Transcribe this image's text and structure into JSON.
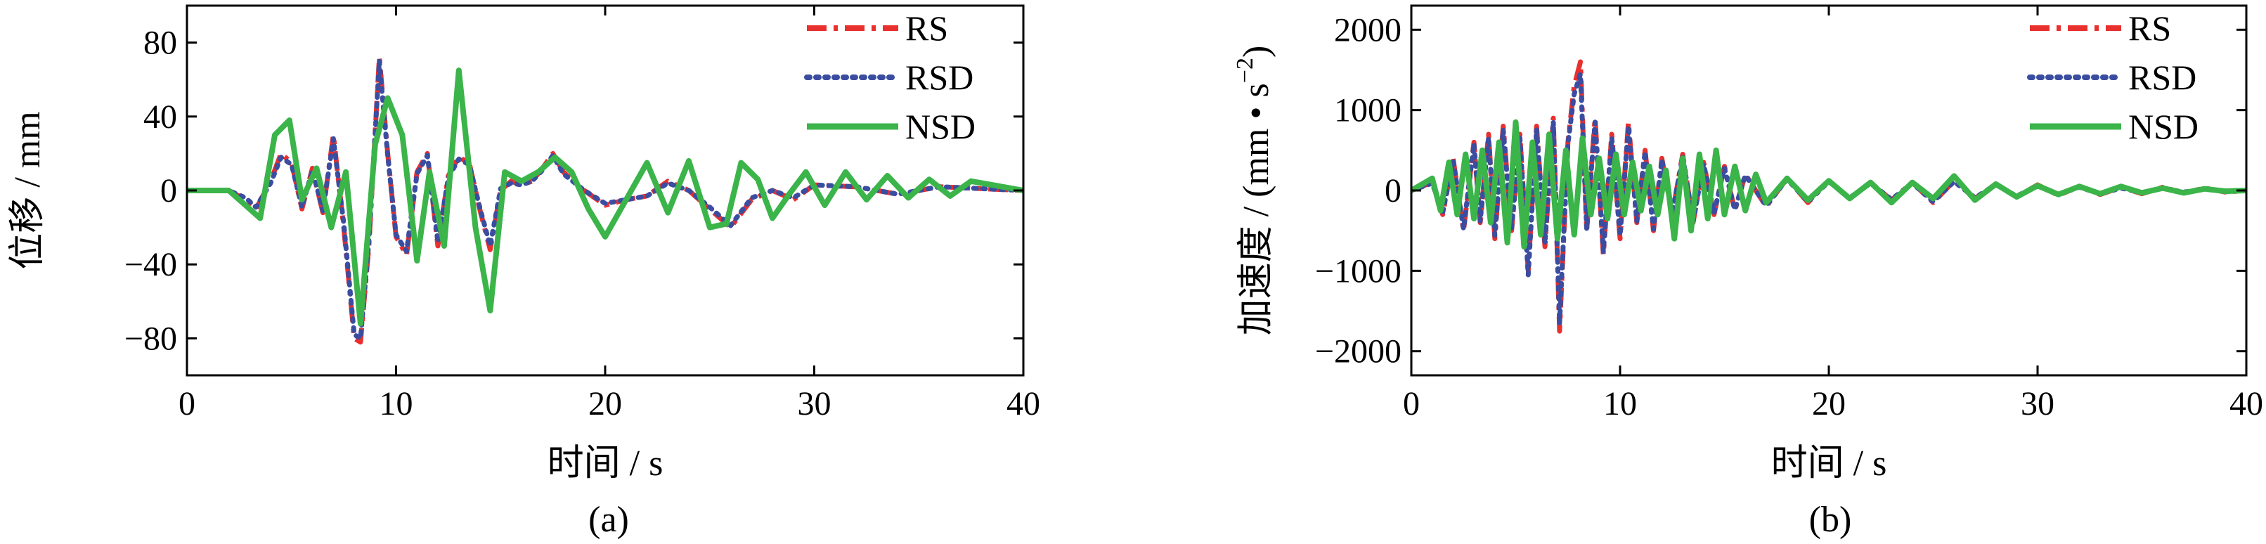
{
  "chart_data": [
    {
      "type": "line",
      "caption": "(a)",
      "xlabel": "时间 / s",
      "ylabel": "位移 / mm",
      "xlim": [
        0,
        40
      ],
      "ylim": [
        -100,
        100
      ],
      "xticks": [
        0,
        10,
        20,
        30,
        40
      ],
      "yticks": [
        -80,
        -40,
        0,
        40,
        80
      ],
      "xtick_labels": [
        "0",
        "10",
        "20",
        "30",
        "40"
      ],
      "ytick_labels": [
        "−80",
        "−40",
        "0",
        "40",
        "80"
      ],
      "grid": false,
      "legend_position": "top-right",
      "series": [
        {
          "name": "RS",
          "color": "#e8302e",
          "dash": "dashdot",
          "x": [
            0,
            2,
            2.8,
            3.3,
            4.0,
            4.5,
            5.0,
            5.5,
            6.0,
            6.5,
            7.0,
            7.5,
            8.0,
            8.3,
            8.7,
            9.2,
            9.6,
            10.0,
            10.5,
            11.0,
            11.5,
            12.0,
            12.5,
            13.0,
            13.5,
            14.0,
            14.5,
            15.0,
            15.5,
            16.0,
            16.5,
            17.0,
            17.5,
            18.0,
            19.0,
            20.0,
            21.0,
            22.0,
            23.0,
            24.0,
            25.0,
            26.0,
            27.0,
            28.0,
            29.0,
            30.0,
            32.0,
            34.0,
            36.0,
            38.0,
            40.0
          ],
          "y": [
            0,
            0,
            -5,
            -10,
            5,
            20,
            15,
            -10,
            12,
            -12,
            30,
            -20,
            -80,
            -82,
            -30,
            72,
            20,
            -25,
            -35,
            10,
            20,
            -30,
            8,
            18,
            15,
            -10,
            -32,
            0,
            5,
            3,
            5,
            12,
            20,
            10,
            0,
            -8,
            -5,
            -3,
            5,
            0,
            -10,
            -20,
            -5,
            0,
            -5,
            3,
            2,
            -2,
            2,
            1,
            0
          ]
        },
        {
          "name": "RSD",
          "color": "#3a4da0",
          "dash": "dotted",
          "x": [
            0,
            2,
            2.8,
            3.3,
            4.0,
            4.5,
            5.0,
            5.5,
            6.0,
            6.5,
            7.0,
            7.5,
            8.0,
            8.3,
            8.7,
            9.2,
            9.6,
            10.0,
            10.5,
            11.0,
            11.5,
            12.0,
            12.5,
            13.0,
            13.5,
            14.0,
            14.5,
            15.0,
            15.5,
            16.0,
            16.5,
            17.0,
            17.5,
            18.0,
            19.0,
            20.0,
            21.0,
            22.0,
            23.0,
            24.0,
            25.0,
            26.0,
            27.0,
            28.0,
            29.0,
            30.0,
            32.0,
            34.0,
            36.0,
            38.0,
            40.0
          ],
          "y": [
            0,
            0,
            -4,
            -9,
            4,
            18,
            14,
            -9,
            11,
            -11,
            28,
            -18,
            -78,
            -80,
            -28,
            70,
            19,
            -24,
            -33,
            9,
            19,
            -28,
            7,
            17,
            14,
            -9,
            -30,
            1,
            4,
            3,
            5,
            11,
            19,
            9,
            0,
            -7,
            -5,
            -3,
            4,
            0,
            -9,
            -19,
            -4,
            0,
            -4,
            3,
            2,
            -2,
            2,
            1,
            0
          ]
        },
        {
          "name": "NSD",
          "color": "#3bb44a",
          "dash": "solid",
          "x": [
            0,
            2,
            2.8,
            3.5,
            4.2,
            4.9,
            5.5,
            6.2,
            6.9,
            7.6,
            8.3,
            9.0,
            9.6,
            10.3,
            11.0,
            11.6,
            12.3,
            13.0,
            13.8,
            14.5,
            15.2,
            16.0,
            16.8,
            17.6,
            18.4,
            19.2,
            20.0,
            21.0,
            22.0,
            23.0,
            24.0,
            25.0,
            25.8,
            26.5,
            27.3,
            28.0,
            28.8,
            29.6,
            30.5,
            31.5,
            32.5,
            33.5,
            34.5,
            35.5,
            36.5,
            37.5,
            38.5,
            40.0
          ],
          "y": [
            0,
            0,
            -8,
            -15,
            30,
            38,
            -5,
            12,
            -20,
            10,
            -72,
            25,
            50,
            30,
            -38,
            10,
            -30,
            65,
            -20,
            -65,
            10,
            5,
            10,
            18,
            10,
            -10,
            -25,
            -5,
            15,
            -12,
            16,
            -20,
            -18,
            15,
            6,
            -15,
            -2,
            10,
            -8,
            10,
            -5,
            8,
            -4,
            6,
            -3,
            5,
            3,
            0
          ]
        }
      ]
    },
    {
      "type": "line",
      "caption": "(b)",
      "xlabel": "时间 / s",
      "ylabel": "加速度 / (mm • s",
      "ylabel_sup": "−2",
      "ylabel_close": ")",
      "xlim": [
        0,
        40
      ],
      "ylim": [
        -2300,
        2300
      ],
      "xticks": [
        0,
        10,
        20,
        30,
        40
      ],
      "yticks": [
        -2000,
        -1000,
        0,
        1000,
        2000
      ],
      "xtick_labels": [
        "0",
        "10",
        "20",
        "30",
        "40"
      ],
      "ytick_labels": [
        "−2000",
        "−1000",
        "0",
        "1000",
        "2000"
      ],
      "grid": false,
      "legend_position": "top-right",
      "series": [
        {
          "name": "RS",
          "color": "#e8302e",
          "dash": "dashdot",
          "x": [
            0,
            1.0,
            1.5,
            2.0,
            2.5,
            3.0,
            3.3,
            3.7,
            4.0,
            4.4,
            4.8,
            5.2,
            5.6,
            6.0,
            6.4,
            6.8,
            7.1,
            7.5,
            7.8,
            8.1,
            8.4,
            8.8,
            9.2,
            9.6,
            10.0,
            10.4,
            10.8,
            11.2,
            11.6,
            12.0,
            12.5,
            13.0,
            13.5,
            14.0,
            14.5,
            15.0,
            15.5,
            16.0,
            17.0,
            18.0,
            19.0,
            20.0,
            21.0,
            22.0,
            23.0,
            24.0,
            25.0,
            26.0,
            27.0,
            28.0,
            29.0,
            30.0,
            31.0,
            32.0,
            33.0,
            34.0,
            35.0,
            36.0,
            37.0,
            38.0,
            39.0,
            40.0
          ],
          "y": [
            0,
            100,
            -300,
            400,
            -500,
            600,
            -400,
            700,
            -600,
            800,
            -500,
            700,
            -1000,
            800,
            -700,
            900,
            -1750,
            600,
            1300,
            1600,
            -500,
            900,
            -800,
            700,
            -600,
            850,
            -400,
            500,
            -500,
            400,
            -300,
            450,
            -400,
            350,
            -300,
            300,
            -250,
            200,
            -200,
            150,
            -150,
            120,
            -100,
            100,
            -120,
            100,
            -150,
            120,
            -100,
            80,
            -80,
            70,
            -60,
            50,
            -50,
            40,
            -40,
            40,
            -30,
            30,
            -20,
            0
          ]
        },
        {
          "name": "RSD",
          "color": "#3a4da0",
          "dash": "dotted",
          "x": [
            0,
            1.0,
            1.5,
            2.0,
            2.5,
            3.0,
            3.3,
            3.7,
            4.0,
            4.4,
            4.8,
            5.2,
            5.6,
            6.0,
            6.4,
            6.8,
            7.1,
            7.5,
            7.8,
            8.1,
            8.4,
            8.8,
            9.2,
            9.6,
            10.0,
            10.4,
            10.8,
            11.2,
            11.6,
            12.0,
            12.5,
            13.0,
            13.5,
            14.0,
            14.5,
            15.0,
            15.5,
            16.0,
            17.0,
            18.0,
            19.0,
            20.0,
            21.0,
            22.0,
            23.0,
            24.0,
            25.0,
            26.0,
            27.0,
            28.0,
            29.0,
            30.0,
            31.0,
            32.0,
            33.0,
            34.0,
            35.0,
            36.0,
            37.0,
            38.0,
            39.0,
            40.0
          ],
          "y": [
            0,
            90,
            -280,
            380,
            -480,
            580,
            -380,
            660,
            -560,
            760,
            -480,
            660,
            -1050,
            760,
            -660,
            860,
            -1650,
            580,
            1200,
            1450,
            -480,
            850,
            -760,
            660,
            -560,
            800,
            -380,
            480,
            -480,
            380,
            -280,
            420,
            -380,
            330,
            -280,
            280,
            -240,
            190,
            -190,
            140,
            -140,
            110,
            -90,
            90,
            -110,
            90,
            -140,
            110,
            -90,
            70,
            -70,
            60,
            -50,
            40,
            -40,
            30,
            -30,
            30,
            -20,
            20,
            -10,
            0
          ]
        },
        {
          "name": "NSD",
          "color": "#3bb44a",
          "dash": "solid",
          "x": [
            0,
            1.0,
            1.4,
            1.8,
            2.2,
            2.6,
            3.0,
            3.4,
            3.8,
            4.2,
            4.6,
            5.0,
            5.4,
            5.8,
            6.2,
            6.6,
            7.0,
            7.4,
            7.8,
            8.2,
            8.6,
            9.0,
            9.4,
            9.8,
            10.2,
            10.6,
            11.0,
            11.4,
            11.8,
            12.2,
            12.6,
            13.0,
            13.4,
            13.8,
            14.2,
            14.6,
            15.0,
            15.5,
            16.0,
            16.5,
            17.0,
            18.0,
            19.0,
            20.0,
            21.0,
            22.0,
            23.0,
            24.0,
            25.0,
            26.0,
            27.0,
            28.0,
            29.0,
            30.0,
            31.0,
            32.0,
            33.0,
            34.0,
            35.0,
            36.0,
            37.0,
            38.0,
            39.0,
            40.0
          ],
          "y": [
            0,
            150,
            -250,
            350,
            -300,
            450,
            -350,
            500,
            -400,
            600,
            -650,
            850,
            -700,
            600,
            -550,
            700,
            -600,
            500,
            -550,
            650,
            -300,
            400,
            -350,
            450,
            -300,
            350,
            -250,
            300,
            -300,
            250,
            -600,
            400,
            -500,
            450,
            -350,
            500,
            -300,
            300,
            -250,
            200,
            -150,
            150,
            -120,
            120,
            -100,
            100,
            -150,
            100,
            -100,
            180,
            -120,
            80,
            -80,
            60,
            -50,
            50,
            -40,
            50,
            -30,
            30,
            -30,
            20,
            -10,
            0
          ]
        }
      ]
    }
  ]
}
